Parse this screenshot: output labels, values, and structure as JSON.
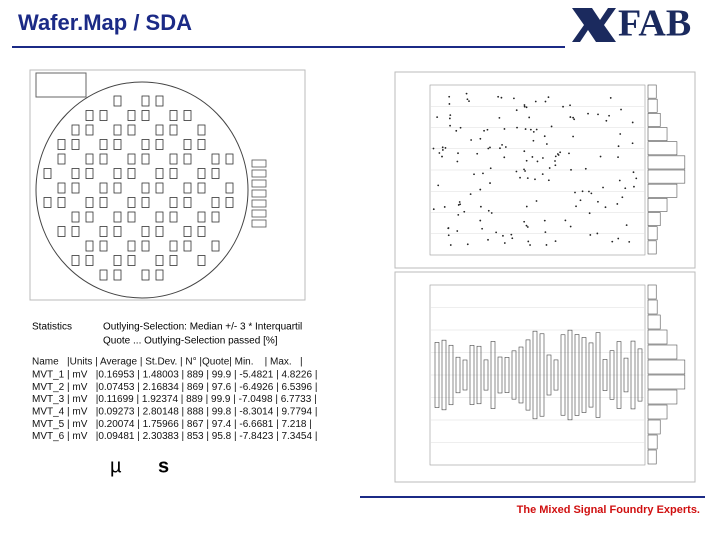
{
  "header": {
    "title": "Wafer.Map / SDA",
    "logo": "FAB"
  },
  "statistics": {
    "label": "Statistics",
    "selection": "Outlying-Selection: Median +/- 3 * Interquartil",
    "quote": "Quote ... Outlying-Selection passed [%]"
  },
  "table": {
    "header": "Name   |Units | Average | St.Dev. | N° |Quote| Min.    | Max.   |",
    "rows": [
      "MVT_1 | mV   |0.16953 | 1.48003 | 889 | 99.9 | -5.4821 | 4.8226 |",
      "MVT_2 | mV   |0.07453 | 2.16834 | 869 | 97.6 | -6.4926 | 6.5396 |",
      "MVT_3 | mV   |0.11699 | 1.92374 | 889 | 99.9 | -7.0498 | 6.7733 |",
      "MVT_4 | mV   |0.09273 | 2.80148 | 888 | 99.8 | -8.3014 | 9.7794 |",
      "MVT_5 | mV   |0.20074 | 1.75966 | 867 | 97.4 | -6.6681 | 7.218 |",
      "MVT_6 | mV   |0.09481 | 2.30383 | 853 | 95.8 | -7.8423 | 7.3454 |"
    ]
  },
  "symbols": {
    "mu": "µ",
    "s": "s"
  },
  "footer": {
    "tagline": "The Mixed Signal Foundry Experts."
  }
}
